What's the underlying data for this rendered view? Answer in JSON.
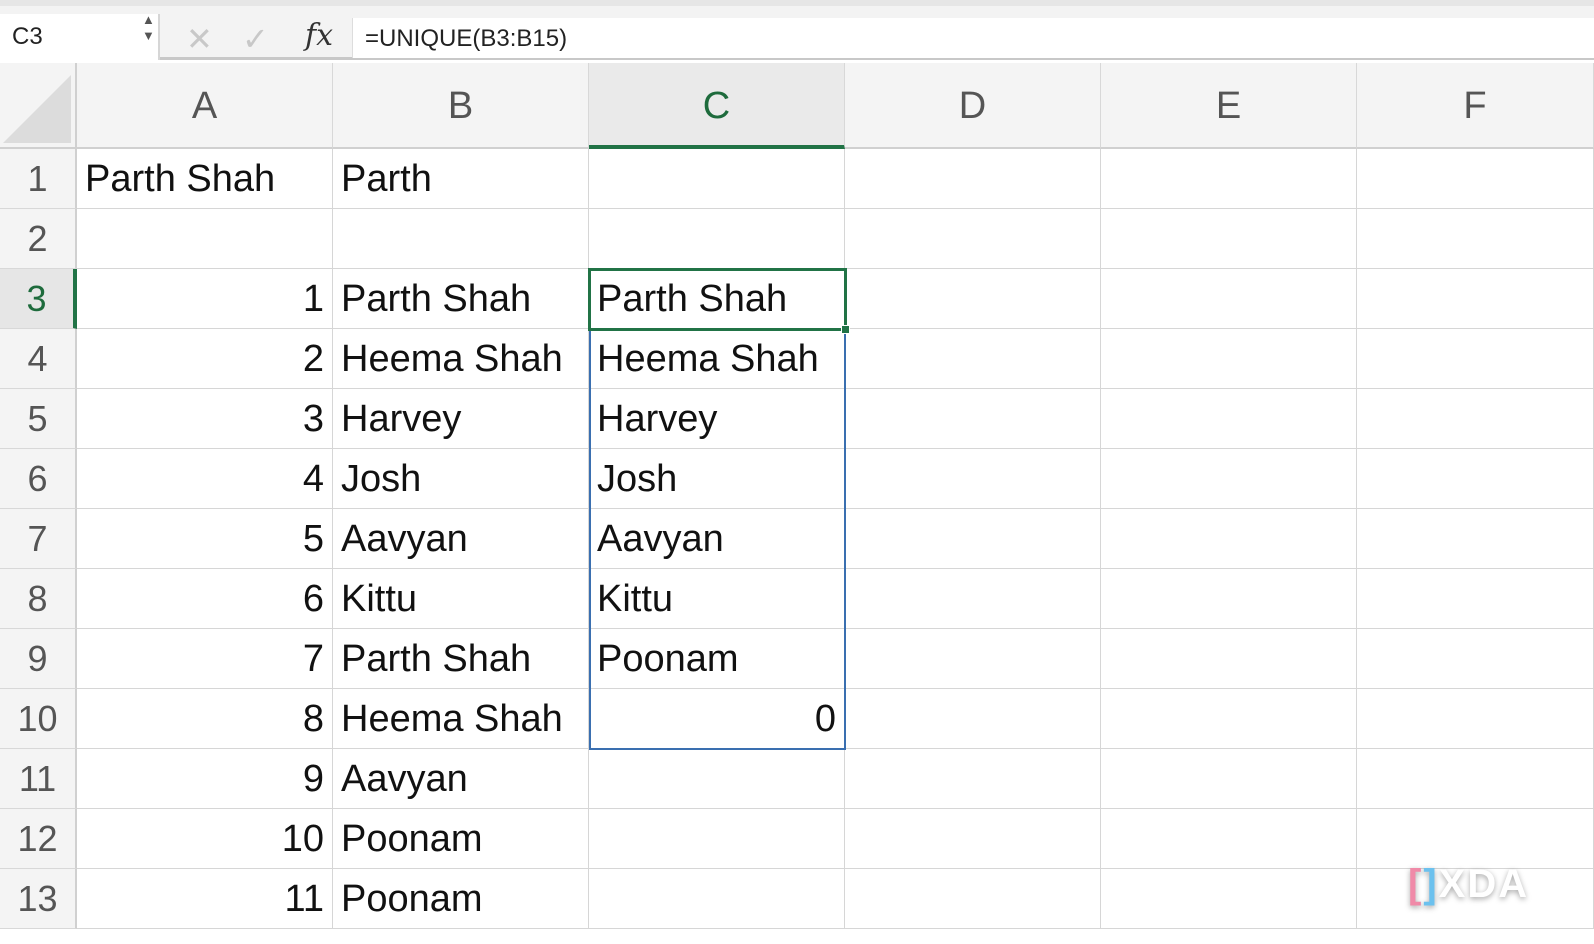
{
  "formula_bar": {
    "name_box": "C3",
    "formula": "=UNIQUE(B3:B15)",
    "cancel_icon": "✕",
    "enter_icon": "✓",
    "fx_label": "fx"
  },
  "columns": [
    "A",
    "B",
    "C",
    "D",
    "E",
    "F"
  ],
  "selected_column": "C",
  "selected_row": 3,
  "rows": [
    {
      "n": "1",
      "A": "Parth Shah",
      "B": "Parth",
      "C": ""
    },
    {
      "n": "2",
      "A": "",
      "B": "",
      "C": ""
    },
    {
      "n": "3",
      "A": "1",
      "B": "Parth Shah",
      "C": "Parth Shah"
    },
    {
      "n": "4",
      "A": "2",
      "B": "Heema Shah",
      "C": "Heema Shah"
    },
    {
      "n": "5",
      "A": "3",
      "B": "Harvey",
      "C": "Harvey"
    },
    {
      "n": "6",
      "A": "4",
      "B": "Josh",
      "C": "Josh"
    },
    {
      "n": "7",
      "A": "5",
      "B": "Aavyan",
      "C": "Aavyan"
    },
    {
      "n": "8",
      "A": "6",
      "B": "Kittu",
      "C": "Kittu"
    },
    {
      "n": "9",
      "A": "7",
      "B": "Parth Shah",
      "C": "Poonam"
    },
    {
      "n": "10",
      "A": "8",
      "B": "Heema Shah",
      "C": "0"
    },
    {
      "n": "11",
      "A": "9",
      "B": "Aavyan",
      "C": ""
    },
    {
      "n": "12",
      "A": "10",
      "B": "Poonam",
      "C": ""
    },
    {
      "n": "13",
      "A": "11",
      "B": "Poonam",
      "C": ""
    }
  ],
  "watermark": "XDA",
  "colors": {
    "accent": "#217346",
    "spill_border": "#3a6fb0"
  }
}
